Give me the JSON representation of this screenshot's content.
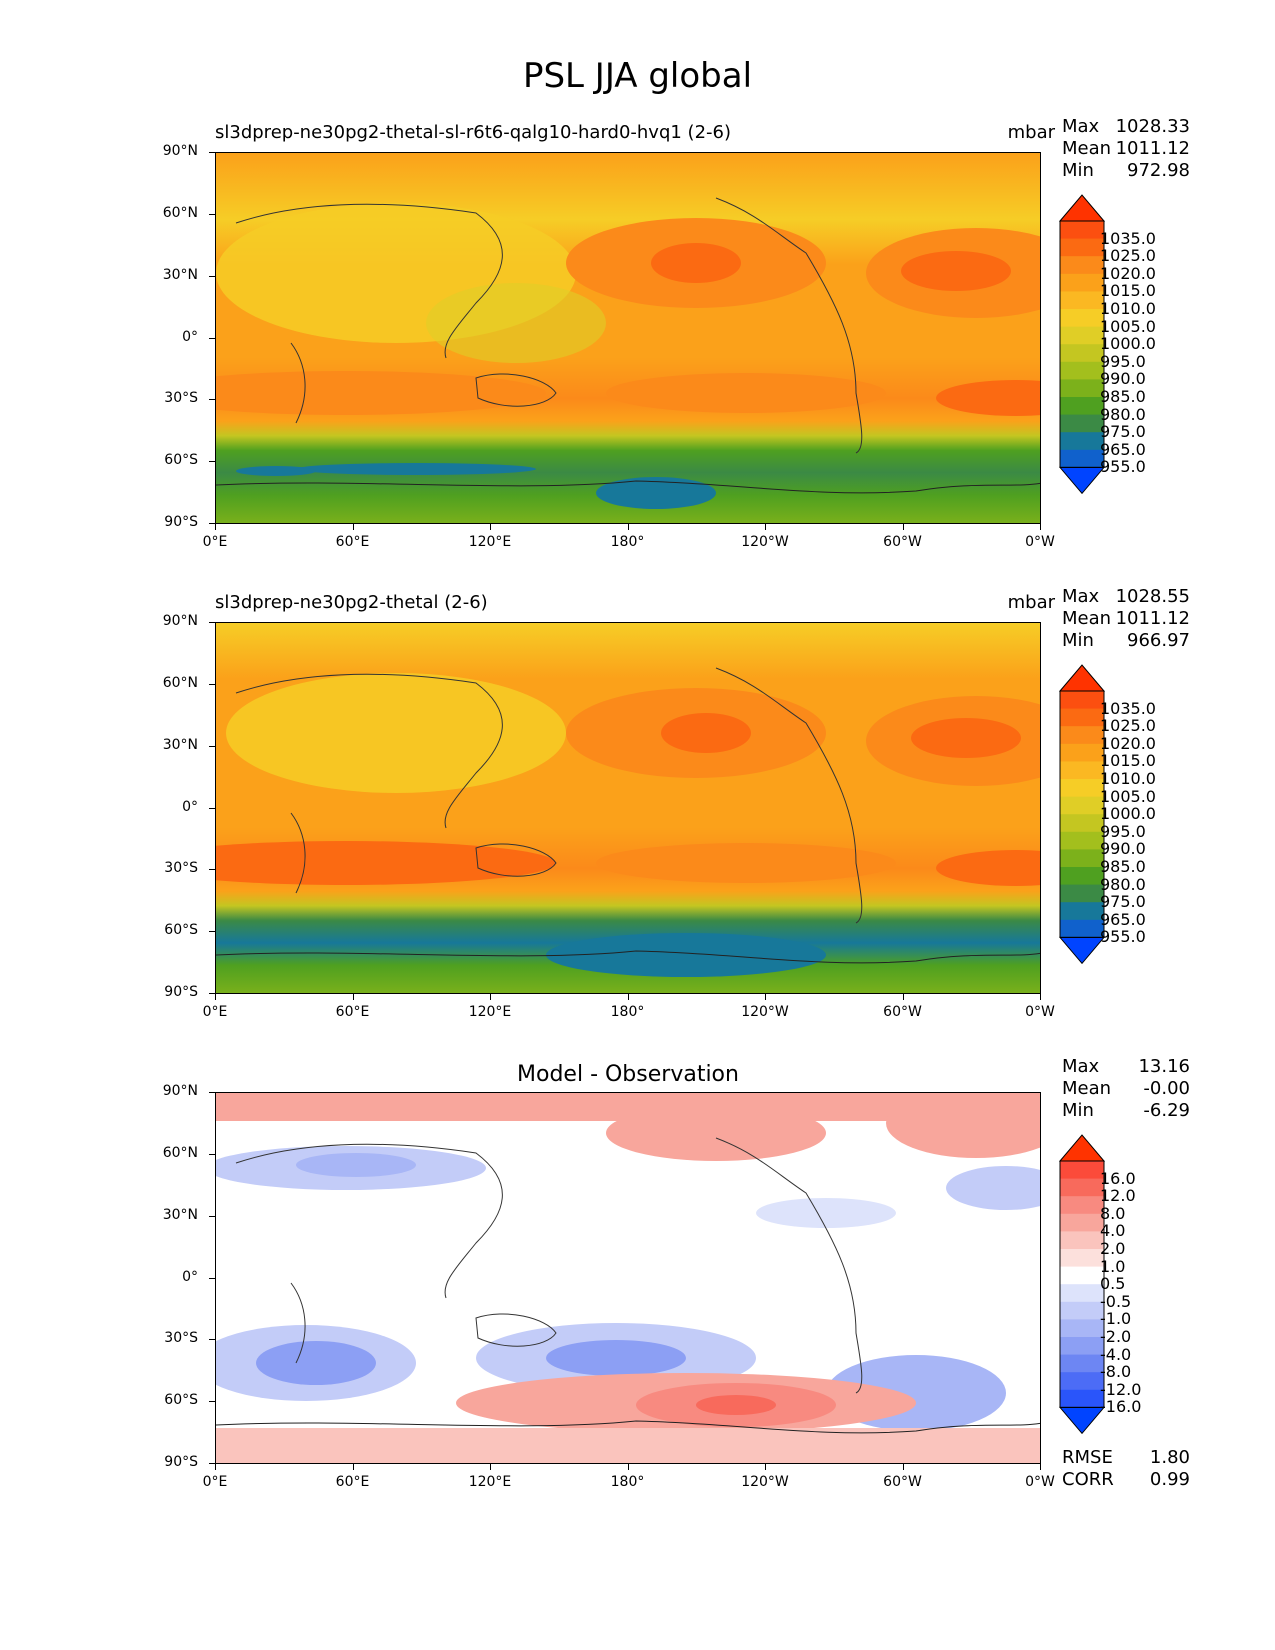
{
  "title": "PSL JJA global",
  "chart_data": [
    {
      "type": "heatmap",
      "title": "sl3dprep-ne30pg2-thetal-sl-r6t6-qalg10-hard0-hvq1 (2-6)",
      "units": "mbar",
      "xlabels": [
        "0°E",
        "60°E",
        "120°E",
        "180°",
        "120°W",
        "60°W",
        "0°W"
      ],
      "ylabels": [
        "90°N",
        "60°N",
        "30°N",
        "0°",
        "30°S",
        "60°S",
        "90°S"
      ],
      "stats": [
        {
          "label": "Max",
          "value": "1028.33"
        },
        {
          "label": "Mean",
          "value": "1011.12"
        },
        {
          "label": "Min",
          "value": "972.98"
        }
      ],
      "colorbar": {
        "labels": [
          "1035.0",
          "1025.0",
          "1020.0",
          "1015.0",
          "1010.0",
          "1005.0",
          "1000.0",
          "995.0",
          "990.0",
          "985.0",
          "980.0",
          "975.0",
          "965.0",
          "955.0"
        ],
        "colors": [
          "#ff3300",
          "#fc4f10",
          "#fb6a12",
          "#fb8a1a",
          "#fba11a",
          "#fbb822",
          "#f6cd26",
          "#e0ce26",
          "#c4c621",
          "#a3bf1d",
          "#7cb11b",
          "#4fa020",
          "#3b8a45",
          "#17789a",
          "#1061cc",
          "#0044ff"
        ]
      },
      "grid": false
    },
    {
      "type": "heatmap",
      "title": "sl3dprep-ne30pg2-thetal (2-6)",
      "units": "mbar",
      "xlabels": [
        "0°E",
        "60°E",
        "120°E",
        "180°",
        "120°W",
        "60°W",
        "0°W"
      ],
      "ylabels": [
        "90°N",
        "60°N",
        "30°N",
        "0°",
        "30°S",
        "60°S",
        "90°S"
      ],
      "stats": [
        {
          "label": "Max",
          "value": "1028.55"
        },
        {
          "label": "Mean",
          "value": "1011.12"
        },
        {
          "label": "Min",
          "value": "966.97"
        }
      ],
      "colorbar": {
        "labels": [
          "1035.0",
          "1025.0",
          "1020.0",
          "1015.0",
          "1010.0",
          "1005.0",
          "1000.0",
          "995.0",
          "990.0",
          "985.0",
          "980.0",
          "975.0",
          "965.0",
          "955.0"
        ],
        "colors": [
          "#ff3300",
          "#fc4f10",
          "#fb6a12",
          "#fb8a1a",
          "#fba11a",
          "#fbb822",
          "#f6cd26",
          "#e0ce26",
          "#c4c621",
          "#a3bf1d",
          "#7cb11b",
          "#4fa020",
          "#3b8a45",
          "#17789a",
          "#1061cc",
          "#0044ff"
        ]
      },
      "grid": false
    },
    {
      "type": "heatmap",
      "title": "Model - Observation",
      "units": "",
      "xlabels": [
        "0°E",
        "60°E",
        "120°E",
        "180°",
        "120°W",
        "60°W",
        "0°W"
      ],
      "ylabels": [
        "90°N",
        "60°N",
        "30°N",
        "0°",
        "30°S",
        "60°S",
        "90°S"
      ],
      "stats": [
        {
          "label": "Max",
          "value": "13.16"
        },
        {
          "label": "Mean",
          "value": "-0.00"
        },
        {
          "label": "Min",
          "value": "-6.29"
        }
      ],
      "extra_stats": [
        {
          "label": "RMSE",
          "value": "1.80"
        },
        {
          "label": "CORR",
          "value": "0.99"
        }
      ],
      "colorbar": {
        "labels": [
          "16.0",
          "12.0",
          "8.0",
          "4.0",
          "2.0",
          "1.0",
          "0.5",
          "-0.5",
          "-1.0",
          "-2.0",
          "-4.0",
          "-8.0",
          "-12.0",
          "-16.0"
        ],
        "colors": [
          "#ff3300",
          "#fb4b3a",
          "#f86a5c",
          "#f88a80",
          "#f8a69c",
          "#fac4bd",
          "#fce0dc",
          "#ffffff",
          "#dde3fb",
          "#c3ccf8",
          "#a8b6f6",
          "#8c9ff4",
          "#6d86f3",
          "#4c6cf6",
          "#2a55fa",
          "#0044ff"
        ]
      },
      "grid": false
    }
  ]
}
